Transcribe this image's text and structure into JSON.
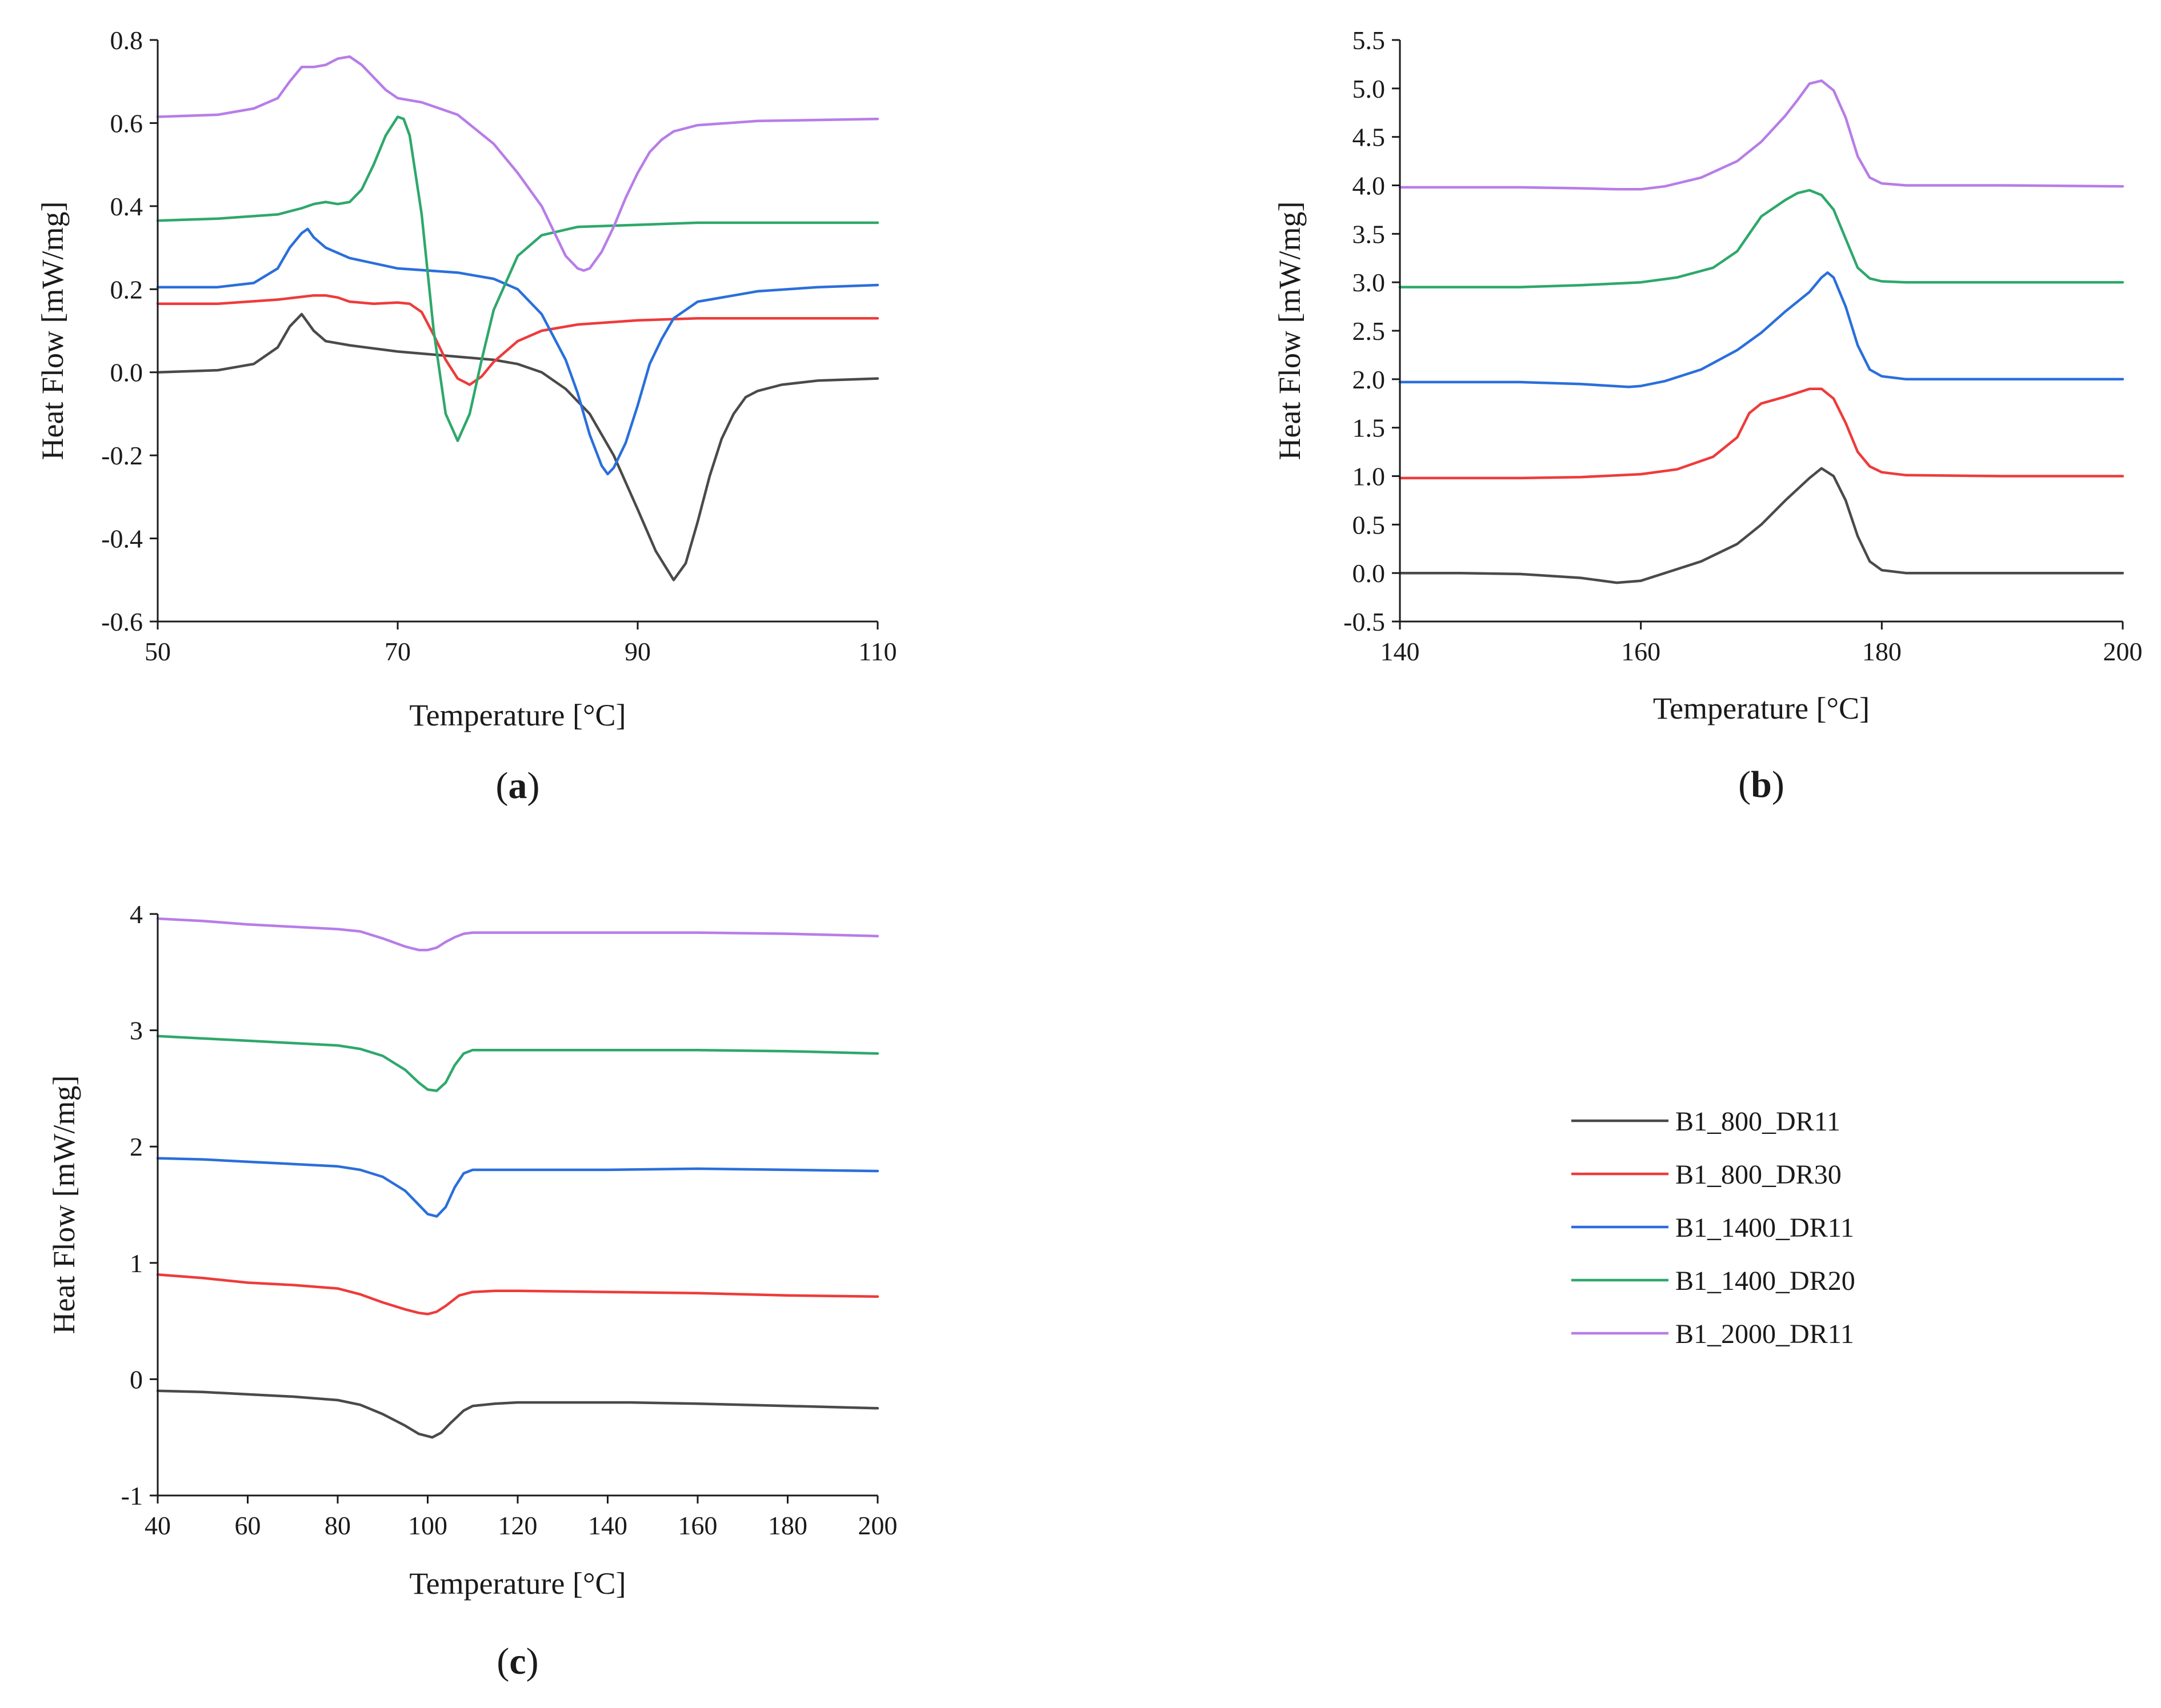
{
  "legend": [
    {
      "label": "B1_800_DR11",
      "color": "#4a4a4a"
    },
    {
      "label": "B1_800_DR30",
      "color": "#ee3b3b"
    },
    {
      "label": "B1_1400_DR11",
      "color": "#2a6fdb"
    },
    {
      "label": "B1_1400_DR20",
      "color": "#2ea86b"
    },
    {
      "label": "B1_2000_DR11",
      "color": "#b77de8"
    }
  ],
  "chart_data": [
    {
      "type": "line",
      "panel_label": "(a)",
      "panel_letter": "a",
      "xlabel": "Temperature [°C]",
      "ylabel": "Heat Flow [mW/mg]",
      "xlim": [
        50,
        110
      ],
      "ylim": [
        -0.6,
        0.8
      ],
      "xticks": [
        50,
        70,
        90,
        110
      ],
      "xtick_labels": [
        "50",
        "70",
        "90",
        "110"
      ],
      "yticks": [
        -0.6,
        -0.4,
        -0.2,
        0.0,
        0.2,
        0.4,
        0.6,
        0.8
      ],
      "ytick_labels": [
        "-0.6",
        "-0.4",
        "-0.2",
        "0.0",
        "0.2",
        "0.4",
        "0.6",
        "0.8"
      ],
      "series": [
        {
          "name": "B1_800_DR11",
          "x": [
            50,
            55,
            58,
            60,
            61,
            62,
            63,
            64,
            66,
            70,
            74,
            78,
            80,
            82,
            84,
            86,
            88,
            90,
            91.5,
            93,
            94,
            95,
            96,
            97,
            98,
            99,
            100,
            102,
            105,
            110
          ],
          "y": [
            0.0,
            0.005,
            0.02,
            0.06,
            0.11,
            0.14,
            0.1,
            0.075,
            0.065,
            0.05,
            0.04,
            0.03,
            0.02,
            0.0,
            -0.04,
            -0.1,
            -0.2,
            -0.33,
            -0.43,
            -0.5,
            -0.46,
            -0.36,
            -0.25,
            -0.16,
            -0.1,
            -0.06,
            -0.045,
            -0.03,
            -0.02,
            -0.015
          ]
        },
        {
          "name": "B1_800_DR30",
          "x": [
            50,
            55,
            60,
            63,
            64,
            65,
            66,
            68,
            70,
            71,
            72,
            73,
            74,
            75,
            76,
            77,
            78,
            80,
            82,
            85,
            90,
            95,
            100,
            110
          ],
          "y": [
            0.165,
            0.165,
            0.175,
            0.185,
            0.185,
            0.18,
            0.17,
            0.165,
            0.168,
            0.165,
            0.145,
            0.09,
            0.03,
            -0.015,
            -0.03,
            -0.01,
            0.025,
            0.075,
            0.1,
            0.115,
            0.125,
            0.13,
            0.13,
            0.13
          ]
        },
        {
          "name": "B1_1400_DR11",
          "x": [
            50,
            55,
            58,
            60,
            61,
            62,
            62.5,
            63,
            64,
            66,
            70,
            75,
            78,
            80,
            82,
            84,
            85,
            86,
            87,
            87.5,
            88,
            89,
            90,
            91,
            92,
            93,
            95,
            100,
            105,
            110
          ],
          "y": [
            0.205,
            0.205,
            0.215,
            0.25,
            0.3,
            0.335,
            0.345,
            0.325,
            0.3,
            0.275,
            0.25,
            0.24,
            0.225,
            0.2,
            0.14,
            0.03,
            -0.05,
            -0.15,
            -0.225,
            -0.245,
            -0.23,
            -0.17,
            -0.08,
            0.02,
            0.08,
            0.13,
            0.17,
            0.195,
            0.205,
            0.21
          ]
        },
        {
          "name": "B1_1400_DR20",
          "x": [
            50,
            55,
            60,
            62,
            63,
            64,
            65,
            66,
            67,
            68,
            69,
            70,
            70.5,
            71,
            72,
            73,
            74,
            75,
            76,
            77,
            78,
            80,
            82,
            85,
            90,
            95,
            100,
            110
          ],
          "y": [
            0.365,
            0.37,
            0.38,
            0.395,
            0.405,
            0.41,
            0.405,
            0.41,
            0.44,
            0.5,
            0.57,
            0.615,
            0.61,
            0.57,
            0.38,
            0.1,
            -0.1,
            -0.165,
            -0.1,
            0.03,
            0.15,
            0.28,
            0.33,
            0.35,
            0.355,
            0.36,
            0.36,
            0.36
          ]
        },
        {
          "name": "B1_2000_DR11",
          "x": [
            50,
            55,
            58,
            60,
            61,
            62,
            63,
            64,
            65,
            66,
            67,
            68,
            69,
            70,
            72,
            75,
            78,
            80,
            82,
            83,
            84,
            85,
            85.5,
            86,
            87,
            88,
            89,
            90,
            91,
            92,
            93,
            95,
            100,
            110
          ],
          "y": [
            0.615,
            0.62,
            0.635,
            0.66,
            0.7,
            0.735,
            0.735,
            0.74,
            0.755,
            0.76,
            0.74,
            0.71,
            0.68,
            0.66,
            0.65,
            0.62,
            0.55,
            0.48,
            0.4,
            0.34,
            0.28,
            0.25,
            0.245,
            0.25,
            0.29,
            0.35,
            0.42,
            0.48,
            0.53,
            0.56,
            0.58,
            0.595,
            0.605,
            0.61
          ]
        }
      ]
    },
    {
      "type": "line",
      "panel_label": "(b)",
      "panel_letter": "b",
      "xlabel": "Temperature [°C]",
      "ylabel": "Heat Flow [mW/mg]",
      "xlim": [
        140,
        200
      ],
      "ylim": [
        -0.5,
        5.5
      ],
      "xticks": [
        140,
        160,
        180,
        200
      ],
      "xtick_labels": [
        "140",
        "160",
        "180",
        "200"
      ],
      "yticks": [
        -0.5,
        0.0,
        0.5,
        1.0,
        1.5,
        2.0,
        2.5,
        3.0,
        3.5,
        4.0,
        4.5,
        5.0,
        5.5
      ],
      "ytick_labels": [
        "-0.5",
        "0.0",
        "0.5",
        "1.0",
        "1.5",
        "2.0",
        "2.5",
        "3.0",
        "3.5",
        "4.0",
        "4.5",
        "5.0",
        "5.5"
      ],
      "series": [
        {
          "name": "B1_800_DR11",
          "x": [
            140,
            145,
            150,
            155,
            158,
            160,
            162,
            165,
            168,
            170,
            172,
            174,
            175,
            176,
            177,
            178,
            179,
            180,
            182,
            190,
            200
          ],
          "y": [
            0.0,
            0.0,
            -0.01,
            -0.05,
            -0.1,
            -0.08,
            0.0,
            0.12,
            0.3,
            0.5,
            0.75,
            0.98,
            1.08,
            1.0,
            0.75,
            0.38,
            0.12,
            0.03,
            0.0,
            0.0,
            0.0
          ]
        },
        {
          "name": "B1_800_DR30",
          "x": [
            140,
            150,
            155,
            160,
            163,
            166,
            168,
            169,
            170,
            172,
            174,
            175,
            176,
            177,
            178,
            179,
            180,
            182,
            190,
            200
          ],
          "y": [
            0.98,
            0.98,
            0.99,
            1.02,
            1.07,
            1.2,
            1.4,
            1.65,
            1.75,
            1.82,
            1.9,
            1.9,
            1.8,
            1.55,
            1.25,
            1.1,
            1.04,
            1.01,
            1.0,
            1.0
          ]
        },
        {
          "name": "B1_1400_DR11",
          "x": [
            140,
            150,
            155,
            159,
            160,
            162,
            165,
            168,
            170,
            172,
            174,
            175,
            175.5,
            176,
            177,
            178,
            179,
            180,
            182,
            190,
            200
          ],
          "y": [
            1.97,
            1.97,
            1.95,
            1.92,
            1.93,
            1.98,
            2.1,
            2.3,
            2.48,
            2.7,
            2.9,
            3.05,
            3.1,
            3.05,
            2.75,
            2.35,
            2.1,
            2.03,
            2.0,
            2.0,
            2.0
          ]
        },
        {
          "name": "B1_1400_DR20",
          "x": [
            140,
            150,
            155,
            160,
            163,
            166,
            168,
            169,
            170,
            172,
            173,
            174,
            175,
            176,
            177,
            178,
            179,
            180,
            182,
            190,
            200
          ],
          "y": [
            2.95,
            2.95,
            2.97,
            3.0,
            3.05,
            3.15,
            3.32,
            3.5,
            3.68,
            3.85,
            3.92,
            3.95,
            3.9,
            3.75,
            3.45,
            3.15,
            3.04,
            3.01,
            3.0,
            3.0,
            3.0
          ]
        },
        {
          "name": "B1_2000_DR11",
          "x": [
            140,
            150,
            155,
            158,
            160,
            162,
            165,
            168,
            170,
            172,
            173,
            174,
            175,
            176,
            177,
            178,
            179,
            180,
            182,
            190,
            200
          ],
          "y": [
            3.98,
            3.98,
            3.97,
            3.96,
            3.96,
            3.99,
            4.08,
            4.25,
            4.45,
            4.72,
            4.88,
            5.05,
            5.08,
            4.98,
            4.7,
            4.3,
            4.08,
            4.02,
            4.0,
            4.0,
            3.99
          ]
        }
      ]
    },
    {
      "type": "line",
      "panel_label": "(c)",
      "panel_letter": "c",
      "xlabel": "Temperature [°C]",
      "ylabel": "Heat Flow [mW/mg]",
      "xlim": [
        40,
        200
      ],
      "ylim": [
        -1,
        4
      ],
      "xticks": [
        40,
        60,
        80,
        100,
        120,
        140,
        160,
        180,
        200
      ],
      "xtick_labels": [
        "40",
        "60",
        "80",
        "100",
        "120",
        "140",
        "160",
        "180",
        "200"
      ],
      "yticks": [
        -1,
        0,
        1,
        2,
        3,
        4
      ],
      "ytick_labels": [
        "-1",
        "0",
        "1",
        "2",
        "3",
        "4"
      ],
      "series": [
        {
          "name": "B1_800_DR11",
          "x": [
            40,
            50,
            60,
            70,
            80,
            85,
            90,
            95,
            98,
            101,
            103,
            105,
            108,
            110,
            115,
            120,
            130,
            145,
            160,
            180,
            200
          ],
          "y": [
            -0.1,
            -0.11,
            -0.13,
            -0.15,
            -0.18,
            -0.22,
            -0.3,
            -0.4,
            -0.47,
            -0.5,
            -0.46,
            -0.38,
            -0.27,
            -0.23,
            -0.21,
            -0.2,
            -0.2,
            -0.2,
            -0.21,
            -0.23,
            -0.25
          ]
        },
        {
          "name": "B1_800_DR30",
          "x": [
            40,
            50,
            60,
            70,
            80,
            85,
            90,
            95,
            98,
            100,
            102,
            104,
            107,
            110,
            115,
            120,
            140,
            160,
            180,
            200
          ],
          "y": [
            0.9,
            0.87,
            0.83,
            0.81,
            0.78,
            0.73,
            0.66,
            0.6,
            0.57,
            0.56,
            0.58,
            0.63,
            0.72,
            0.75,
            0.76,
            0.76,
            0.75,
            0.74,
            0.72,
            0.71
          ]
        },
        {
          "name": "B1_1400_DR11",
          "x": [
            40,
            50,
            60,
            70,
            80,
            85,
            90,
            95,
            98,
            100,
            102,
            104,
            106,
            108,
            110,
            115,
            120,
            140,
            160,
            180,
            200
          ],
          "y": [
            1.9,
            1.89,
            1.87,
            1.85,
            1.83,
            1.8,
            1.74,
            1.62,
            1.5,
            1.42,
            1.4,
            1.48,
            1.65,
            1.77,
            1.8,
            1.8,
            1.8,
            1.8,
            1.81,
            1.8,
            1.79
          ]
        },
        {
          "name": "B1_1400_DR20",
          "x": [
            40,
            50,
            60,
            70,
            80,
            85,
            90,
            95,
            98,
            100,
            102,
            104,
            106,
            108,
            110,
            115,
            120,
            140,
            160,
            180,
            200
          ],
          "y": [
            2.95,
            2.93,
            2.91,
            2.89,
            2.87,
            2.84,
            2.78,
            2.66,
            2.55,
            2.49,
            2.48,
            2.55,
            2.7,
            2.8,
            2.83,
            2.83,
            2.83,
            2.83,
            2.83,
            2.82,
            2.8
          ]
        },
        {
          "name": "B1_2000_DR11",
          "x": [
            40,
            50,
            60,
            70,
            80,
            85,
            90,
            95,
            98,
            100,
            102,
            104,
            106,
            108,
            110,
            115,
            120,
            140,
            160,
            180,
            200
          ],
          "y": [
            3.96,
            3.94,
            3.91,
            3.89,
            3.87,
            3.85,
            3.79,
            3.72,
            3.69,
            3.69,
            3.71,
            3.76,
            3.8,
            3.83,
            3.84,
            3.84,
            3.84,
            3.84,
            3.84,
            3.83,
            3.81
          ]
        }
      ]
    }
  ]
}
